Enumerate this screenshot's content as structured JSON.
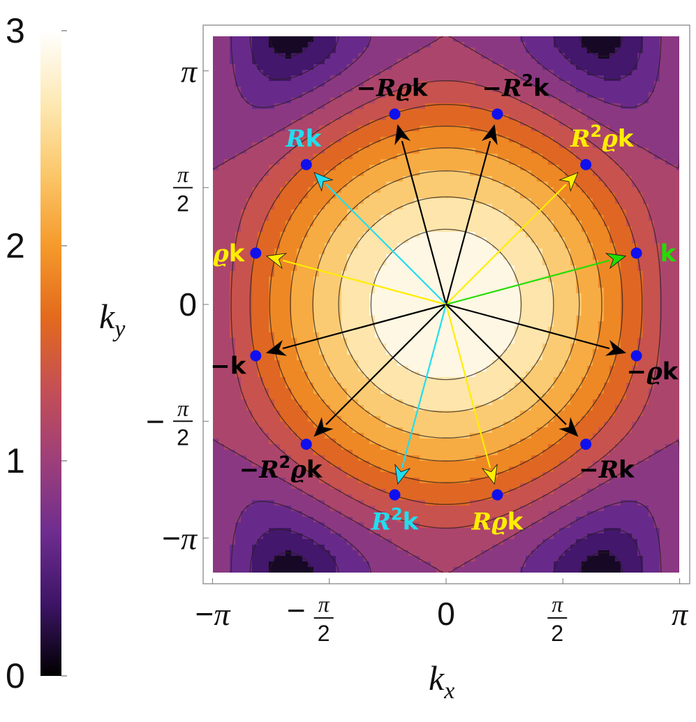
{
  "chart_data": {
    "type": "contour",
    "colorbar": {
      "ticks": [
        "0",
        "1",
        "2",
        "3"
      ],
      "range": [
        0,
        3
      ],
      "colormap": "inferno-like",
      "stops": [
        "#000000",
        "#3d1466",
        "#6e2d8f",
        "#9d3f7a",
        "#c44f55",
        "#e36a1c",
        "#f59a2b",
        "#fbc76a",
        "#fde9b4",
        "#ffffff"
      ]
    },
    "xlabel_var": "k",
    "xlabel_sub": "x",
    "ylabel_var": "k",
    "ylabel_sub": "y",
    "xlim": [
      -3.3,
      3.3
    ],
    "ylim": [
      -3.3,
      3.3
    ],
    "x_ticks": [
      {
        "value": -3.14159,
        "kind": "pi",
        "sign": "−"
      },
      {
        "value": -1.5708,
        "kind": "frac",
        "sign": "−"
      },
      {
        "value": 0,
        "kind": "zero",
        "sign": ""
      },
      {
        "value": 1.5708,
        "kind": "frac",
        "sign": ""
      },
      {
        "value": 3.14159,
        "kind": "pi",
        "sign": ""
      }
    ],
    "y_ticks": [
      {
        "value": 3.14159,
        "kind": "pi",
        "sign": ""
      },
      {
        "value": 1.5708,
        "kind": "frac",
        "sign": ""
      },
      {
        "value": 0,
        "kind": "zero",
        "sign": ""
      },
      {
        "value": -1.5708,
        "kind": "frac",
        "sign": "−"
      },
      {
        "value": -3.14159,
        "kind": "pi",
        "sign": "−"
      }
    ],
    "tick_glyphs": {
      "pi": "π",
      "zero": "0",
      "frac_num": "π",
      "frac_den": "2"
    },
    "vectors": [
      {
        "label_parts": [
          {
            "t": "k",
            "it": false
          }
        ],
        "x": 2.56,
        "y": 0.69,
        "color": "#22dd00",
        "anchor": "right"
      },
      {
        "label_parts": [
          {
            "t": "R",
            "it": true
          },
          {
            "t": "2",
            "it": false,
            "sup": true
          },
          {
            "t": "ϱ",
            "it": true
          },
          {
            "t": "k",
            "it": false
          }
        ],
        "x": 1.88,
        "y": 1.88,
        "color": "#ffee00",
        "anchor": "above-right"
      },
      {
        "label_parts": [
          {
            "t": "−",
            "it": false
          },
          {
            "t": "R",
            "it": true
          },
          {
            "t": "2",
            "it": false,
            "sup": true
          },
          {
            "t": "k",
            "it": false
          }
        ],
        "x": 0.69,
        "y": 2.56,
        "color": "#000000",
        "anchor": "above-right"
      },
      {
        "label_parts": [
          {
            "t": "−",
            "it": false
          },
          {
            "t": "R",
            "it": true
          },
          {
            "t": "ϱ",
            "it": true
          },
          {
            "t": "k",
            "it": false
          }
        ],
        "x": -0.69,
        "y": 2.56,
        "color": "#000000",
        "anchor": "above-left"
      },
      {
        "label_parts": [
          {
            "t": "R",
            "it": true
          },
          {
            "t": "k",
            "it": false
          }
        ],
        "x": -1.88,
        "y": 1.88,
        "color": "#22ddee",
        "anchor": "above-left"
      },
      {
        "label_parts": [
          {
            "t": "ϱ",
            "it": true
          },
          {
            "t": "k",
            "it": false
          }
        ],
        "x": -2.56,
        "y": 0.69,
        "color": "#ffee00",
        "anchor": "left"
      },
      {
        "label_parts": [
          {
            "t": "−",
            "it": false
          },
          {
            "t": "k",
            "it": false
          }
        ],
        "x": -2.56,
        "y": -0.69,
        "color": "#000000",
        "anchor": "left-below"
      },
      {
        "label_parts": [
          {
            "t": "−",
            "it": false
          },
          {
            "t": "R",
            "it": true
          },
          {
            "t": "2",
            "it": false,
            "sup": true
          },
          {
            "t": "ϱ",
            "it": true
          },
          {
            "t": "k",
            "it": false
          }
        ],
        "x": -1.88,
        "y": -1.88,
        "color": "#000000",
        "anchor": "below-left"
      },
      {
        "label_parts": [
          {
            "t": "R",
            "it": true
          },
          {
            "t": "2",
            "it": false,
            "sup": true
          },
          {
            "t": "k",
            "it": false
          }
        ],
        "x": -0.69,
        "y": -2.56,
        "color": "#22ddee",
        "anchor": "below"
      },
      {
        "label_parts": [
          {
            "t": "R",
            "it": true
          },
          {
            "t": "ϱ",
            "it": true
          },
          {
            "t": "k",
            "it": false
          }
        ],
        "x": 0.69,
        "y": -2.56,
        "color": "#ffee00",
        "anchor": "below"
      },
      {
        "label_parts": [
          {
            "t": "−",
            "it": false
          },
          {
            "t": "R",
            "it": true
          },
          {
            "t": "k",
            "it": false
          }
        ],
        "x": 1.88,
        "y": -1.88,
        "color": "#000000",
        "anchor": "below-right"
      },
      {
        "label_parts": [
          {
            "t": "−",
            "it": false
          },
          {
            "t": "ϱ",
            "it": true
          },
          {
            "t": "k",
            "it": false
          }
        ],
        "x": 2.56,
        "y": -0.69,
        "color": "#000000",
        "anchor": "right-below"
      }
    ],
    "point_color": "#1010ee"
  }
}
